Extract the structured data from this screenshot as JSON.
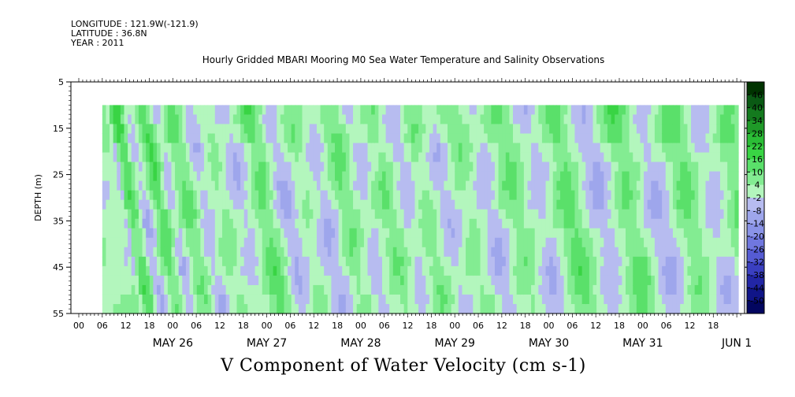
{
  "header": {
    "longitude": "LONGITUDE : 121.9W(-121.9)",
    "latitude": "LATITUDE : 36.8N",
    "year": "YEAR : 2011"
  },
  "chart_data": {
    "type": "heatmap",
    "title": "Hourly Gridded MBARI Mooring M0 Sea Water Temperature and Salinity Observations",
    "bottom_title": "V Component of Water Velocity (cm s-1)",
    "ylabel": "DEPTH (m)",
    "y_ticks": [
      "5",
      "15",
      "25",
      "35",
      "45",
      "55"
    ],
    "ylim": [
      5,
      55
    ],
    "y_inverted": true,
    "hour_ticks": [
      "00",
      "06",
      "12",
      "18",
      "00",
      "06",
      "12",
      "18",
      "00",
      "06",
      "12",
      "18",
      "00",
      "06",
      "12",
      "18",
      "00",
      "06",
      "12",
      "18",
      "00",
      "06",
      "12",
      "18",
      "00",
      "06",
      "12",
      "18"
    ],
    "day_labels": [
      "MAY 26",
      "MAY 27",
      "MAY 28",
      "MAY 29",
      "MAY 30",
      "MAY 31",
      "JUN  1"
    ],
    "data_start": "May 25 2011 06:00",
    "data_depth_top": 10,
    "data_depth_bottom": 55,
    "colorbar_labels": [
      "46",
      "40",
      "34",
      "28",
      "22",
      "16",
      "10",
      "4",
      "-2",
      "-8",
      "-14",
      "-20",
      "-26",
      "-32",
      "-38",
      "-44",
      "-50"
    ],
    "colorbar_colors": [
      "#003300",
      "#0a5a14",
      "#147a1e",
      "#1f9a28",
      "#2bbd36",
      "#39d444",
      "#5ae06a",
      "#83ec92",
      "#b3f6bd",
      "#b7bcf0",
      "#9ea6ec",
      "#8a93e7",
      "#7077df",
      "#555bd3",
      "#3a3fc0",
      "#2226a5",
      "#101588",
      "#030660"
    ],
    "tracks": [
      {
        "start_hour": 6,
        "values": [
          2,
          -3,
          9,
          14,
          12,
          4,
          -4,
          -6,
          -2,
          5,
          11,
          13,
          10,
          3,
          -4,
          -5,
          1,
          6,
          9,
          10,
          7,
          2,
          -3,
          -6,
          -5,
          -2,
          1,
          3,
          5,
          4,
          2,
          -1,
          -3,
          -4,
          -5,
          -3,
          0,
          4,
          8,
          11,
          12,
          10,
          6,
          2,
          -3,
          -6,
          -7,
          -5,
          -2,
          1,
          3,
          4,
          3,
          1,
          -2,
          -4,
          -6,
          -5,
          -3,
          0,
          4,
          7,
          9,
          8,
          6,
          3,
          -1,
          -4,
          -5,
          -3,
          0,
          2,
          5,
          7,
          8,
          6,
          3,
          0,
          -3,
          -5,
          -4,
          -1,
          2,
          5,
          7,
          6,
          4,
          1,
          -2,
          -4,
          -5,
          -3,
          -1,
          2,
          4,
          6,
          7,
          5,
          3,
          0,
          -3,
          -5,
          -6,
          -4,
          -2,
          1,
          4,
          6,
          8,
          9,
          7,
          5,
          2,
          -1,
          -3,
          -5,
          -6,
          -5,
          -3,
          0,
          3,
          6,
          9,
          11,
          12,
          10,
          7,
          4,
          1,
          -2,
          -4,
          -6,
          -7,
          -6,
          -4,
          -1,
          2,
          5,
          8,
          10,
          11,
          10,
          8,
          5,
          2,
          -1,
          -4,
          -6,
          -7,
          -6,
          -4,
          -2,
          1,
          4,
          7,
          9,
          10,
          9,
          7,
          4,
          1,
          -2,
          -4,
          -5,
          -5,
          -4,
          -2,
          1,
          4,
          7,
          9,
          10,
          9,
          7,
          5
        ]
      }
    ],
    "note": "Time axis spans May 25 00:00 to Jun 1 ~23:00 (hourly). Values in cm/s."
  }
}
